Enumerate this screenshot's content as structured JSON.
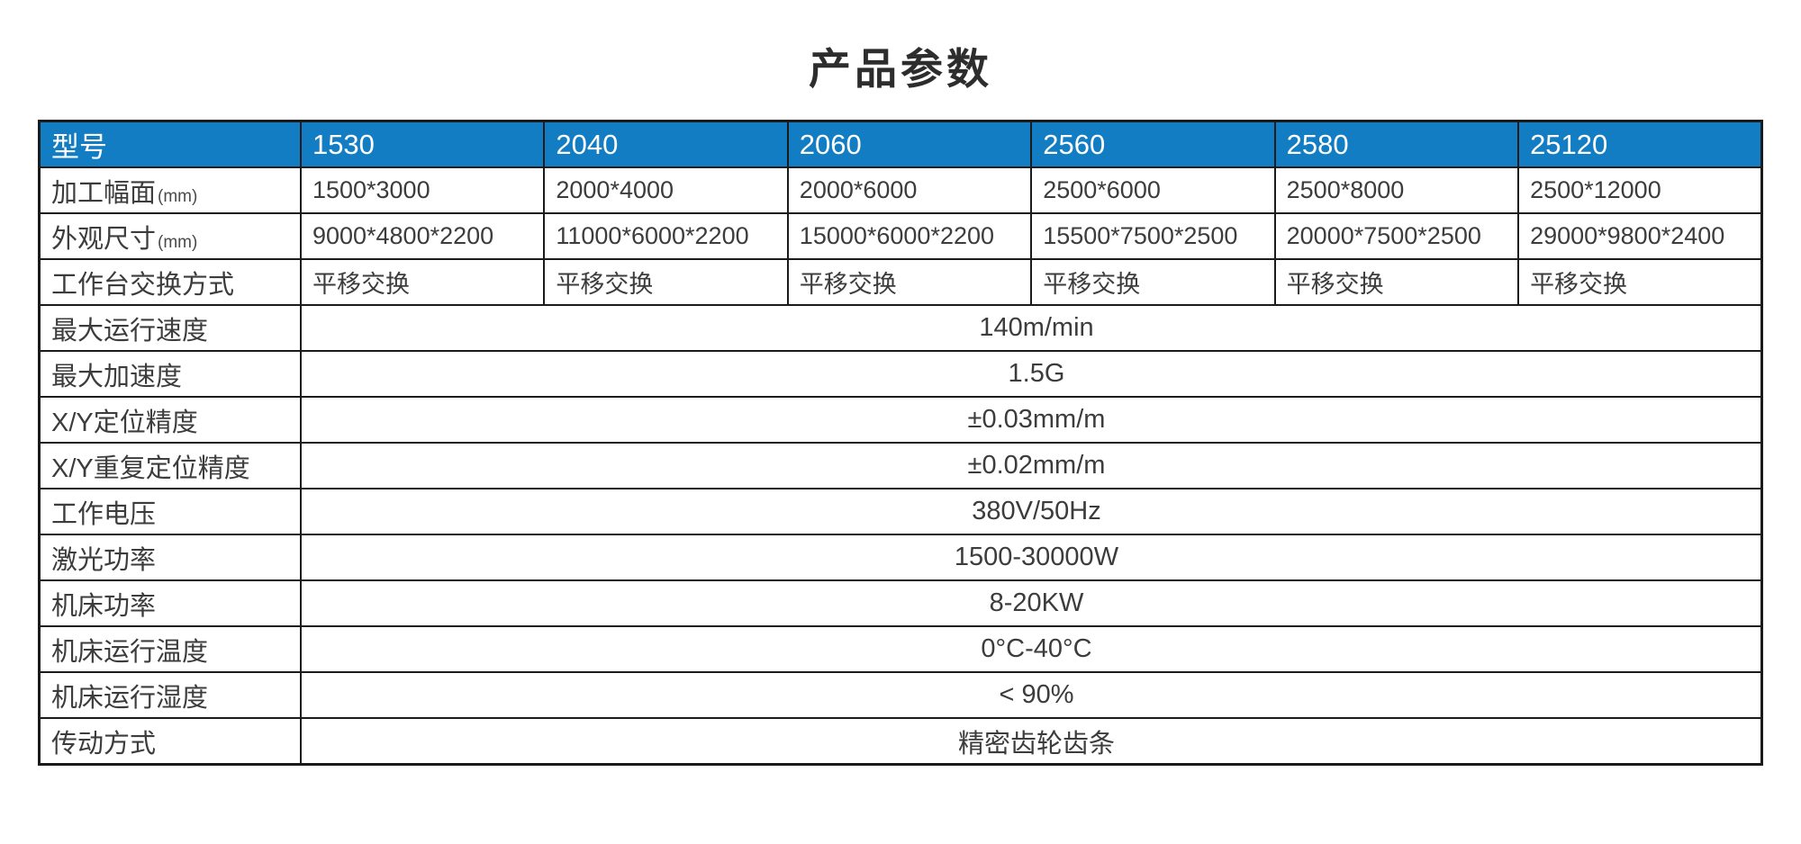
{
  "page": {
    "title": "产品参数"
  },
  "colors": {
    "header_bg": "#127dc2",
    "header_text": "#ffffff",
    "border": "#1b1b1b",
    "body_text": "#3c3c3c",
    "background": "#ffffff"
  },
  "table": {
    "header": {
      "label": "型号",
      "models": [
        "1530",
        "2040",
        "2060",
        "2560",
        "2580",
        "25120"
      ]
    },
    "per_model_rows": [
      {
        "label": "加工幅面",
        "unit": "(mm)",
        "values": [
          "1500*3000",
          "2000*4000",
          "2000*6000",
          "2500*6000",
          "2500*8000",
          "2500*12000"
        ]
      },
      {
        "label": "外观尺寸",
        "unit": "(mm)",
        "values": [
          "9000*4800*2200",
          "11000*6000*2200",
          "15000*6000*2200",
          "15500*7500*2500",
          "20000*7500*2500",
          "29000*9800*2400"
        ]
      },
      {
        "label": "工作台交换方式",
        "unit": "",
        "values": [
          "平移交换",
          "平移交换",
          "平移交换",
          "平移交换",
          "平移交换",
          "平移交换"
        ]
      }
    ],
    "shared_rows": [
      {
        "label": "最大运行速度",
        "value": "140m/min"
      },
      {
        "label": "最大加速度",
        "value": "1.5G"
      },
      {
        "label": "X/Y定位精度",
        "value": "±0.03mm/m"
      },
      {
        "label": "X/Y重复定位精度",
        "value": "±0.02mm/m"
      },
      {
        "label": "工作电压",
        "value": "380V/50Hz"
      },
      {
        "label": "激光功率",
        "value": "1500-30000W"
      },
      {
        "label": "机床功率",
        "value": "8-20KW"
      },
      {
        "label": "机床运行温度",
        "value": "0°C-40°C"
      },
      {
        "label": "机床运行湿度",
        "value": "< 90%"
      },
      {
        "label": "传动方式",
        "value": "精密齿轮齿条"
      }
    ]
  }
}
